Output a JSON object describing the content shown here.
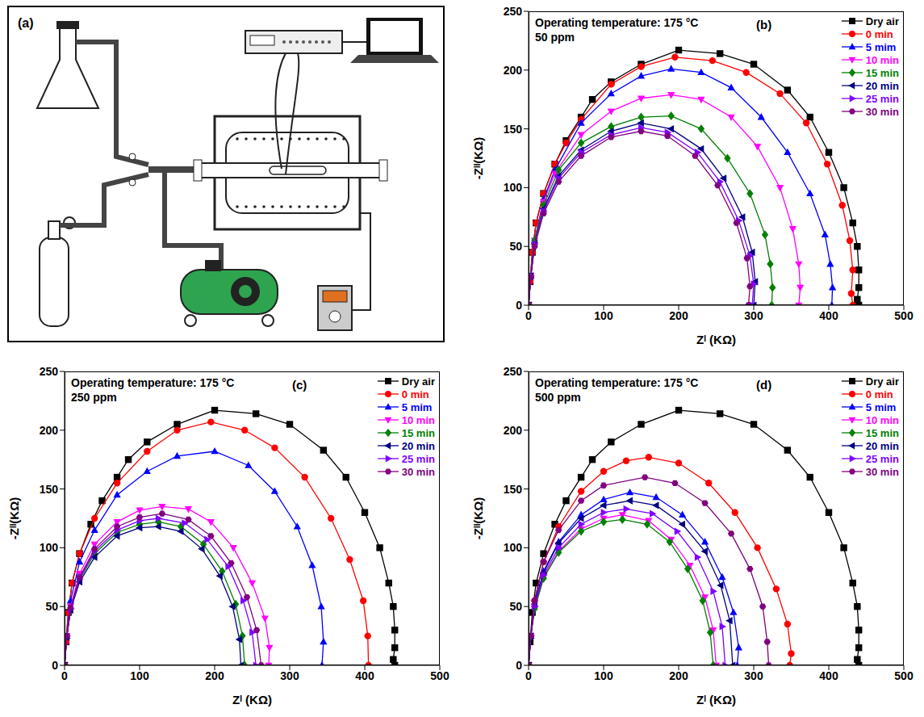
{
  "chart_data": [
    {
      "type": "diagram",
      "panel": "(a)"
    },
    {
      "type": "line",
      "panel": "(b)",
      "annotations": [
        "Operating temperature: 175 °C",
        "50 ppm"
      ],
      "xlabel": "Zᴵ (KΩ)",
      "ylabel": "-Zᴵᴵ(KΩ)",
      "xlim": [
        0,
        500
      ],
      "xticks": [
        0,
        100,
        200,
        300,
        400,
        500
      ],
      "ylim": [
        0,
        250
      ],
      "yticks": [
        0,
        50,
        100,
        150,
        200,
        250
      ],
      "grid": false,
      "legend": "top right",
      "series": [
        {
          "name": "Dry air",
          "color": "#000000",
          "marker": "square",
          "x": [
            0,
            2,
            5,
            10,
            20,
            35,
            50,
            70,
            85,
            110,
            150,
            200,
            255,
            300,
            345,
            375,
            400,
            420,
            432,
            438,
            440,
            440,
            438,
            440
          ],
          "values": [
            0,
            20,
            45,
            70,
            95,
            120,
            140,
            160,
            175,
            190,
            205,
            217,
            214,
            205,
            183,
            160,
            130,
            100,
            70,
            50,
            30,
            15,
            5,
            0
          ]
        },
        {
          "name": "0 min",
          "color": "#ff0000",
          "marker": "circle",
          "x": [
            0,
            2,
            5,
            10,
            20,
            35,
            50,
            70,
            110,
            150,
            195,
            245,
            290,
            335,
            370,
            398,
            418,
            428,
            432,
            430,
            432
          ],
          "values": [
            0,
            20,
            45,
            70,
            95,
            120,
            138,
            158,
            188,
            203,
            211,
            208,
            198,
            180,
            155,
            120,
            85,
            55,
            30,
            10,
            0
          ]
        },
        {
          "name": "5 mim",
          "color": "#0000ff",
          "marker": "triangle",
          "x": [
            0,
            3,
            8,
            20,
            35,
            70,
            110,
            150,
            190,
            230,
            270,
            310,
            345,
            375,
            395,
            402,
            405,
            404
          ],
          "values": [
            0,
            25,
            55,
            90,
            115,
            155,
            180,
            195,
            201,
            198,
            185,
            160,
            130,
            95,
            60,
            35,
            15,
            0
          ]
        },
        {
          "name": "10 min",
          "color": "#ff00ff",
          "marker": "triangle_down",
          "x": [
            0,
            3,
            8,
            20,
            35,
            70,
            110,
            150,
            190,
            230,
            270,
            305,
            335,
            352,
            360,
            362,
            360
          ],
          "values": [
            0,
            25,
            55,
            88,
            112,
            145,
            165,
            176,
            179,
            175,
            160,
            135,
            100,
            65,
            35,
            15,
            0
          ]
        },
        {
          "name": "15 min",
          "color": "#008000",
          "marker": "diamond",
          "x": [
            0,
            3,
            8,
            20,
            40,
            70,
            110,
            150,
            190,
            230,
            265,
            295,
            315,
            322,
            325,
            324
          ],
          "values": [
            0,
            25,
            55,
            85,
            115,
            138,
            152,
            160,
            161,
            150,
            125,
            95,
            60,
            35,
            15,
            0
          ]
        },
        {
          "name": "20 min",
          "color": "#000080",
          "marker": "triangle_left",
          "x": [
            0,
            3,
            8,
            20,
            40,
            70,
            110,
            150,
            190,
            230,
            260,
            285,
            298,
            302,
            300
          ],
          "values": [
            0,
            25,
            52,
            82,
            110,
            132,
            148,
            155,
            150,
            133,
            108,
            75,
            45,
            20,
            0
          ]
        },
        {
          "name": "25 min",
          "color": "#7f00ff",
          "marker": "triangle_right",
          "x": [
            0,
            3,
            8,
            20,
            40,
            70,
            110,
            150,
            185,
            225,
            255,
            280,
            295,
            300,
            298
          ],
          "values": [
            0,
            25,
            52,
            80,
            108,
            130,
            145,
            151,
            147,
            130,
            105,
            72,
            42,
            18,
            0
          ]
        },
        {
          "name": "30 min",
          "color": "#800080",
          "marker": "hexagon",
          "x": [
            0,
            3,
            8,
            20,
            40,
            70,
            110,
            150,
            185,
            222,
            252,
            277,
            291,
            295,
            293
          ],
          "values": [
            0,
            24,
            50,
            78,
            105,
            127,
            143,
            148,
            144,
            127,
            102,
            70,
            40,
            16,
            0
          ]
        }
      ]
    },
    {
      "type": "line",
      "panel": "(c)",
      "annotations": [
        "Operating temperature: 175 °C",
        "250 ppm"
      ],
      "xlabel": "Zᴵ (KΩ)",
      "ylabel": "-Zᴵᴵ(KΩ)",
      "xlim": [
        0,
        500
      ],
      "xticks": [
        0,
        100,
        200,
        300,
        400,
        500
      ],
      "ylim": [
        0,
        250
      ],
      "yticks": [
        0,
        50,
        100,
        150,
        200,
        250
      ],
      "grid": false,
      "legend": "top right",
      "series": [
        {
          "name": "Dry air",
          "color": "#000000",
          "marker": "square",
          "x": [
            0,
            2,
            5,
            10,
            20,
            35,
            50,
            70,
            85,
            110,
            150,
            200,
            255,
            300,
            345,
            375,
            400,
            420,
            432,
            438,
            440,
            440,
            438,
            440
          ],
          "values": [
            0,
            20,
            45,
            70,
            95,
            120,
            140,
            160,
            175,
            190,
            205,
            217,
            214,
            205,
            183,
            160,
            130,
            100,
            70,
            50,
            30,
            15,
            5,
            0
          ]
        },
        {
          "name": "0 min",
          "color": "#ff0000",
          "marker": "circle",
          "x": [
            0,
            2,
            5,
            10,
            20,
            40,
            70,
            110,
            150,
            195,
            240,
            280,
            320,
            355,
            380,
            398,
            404,
            405
          ],
          "values": [
            0,
            20,
            45,
            70,
            95,
            125,
            155,
            182,
            200,
            207,
            200,
            185,
            160,
            125,
            90,
            55,
            25,
            0
          ]
        },
        {
          "name": "5 mim",
          "color": "#0000ff",
          "marker": "triangle",
          "x": [
            0,
            3,
            8,
            20,
            40,
            70,
            110,
            150,
            200,
            245,
            280,
            310,
            330,
            342,
            345,
            343
          ],
          "values": [
            0,
            25,
            55,
            88,
            115,
            145,
            165,
            178,
            182,
            170,
            148,
            118,
            85,
            50,
            20,
            0
          ]
        },
        {
          "name": "10 min",
          "color": "#ff00ff",
          "marker": "triangle_down",
          "x": [
            0,
            3,
            8,
            20,
            40,
            70,
            100,
            130,
            165,
            195,
            225,
            250,
            267,
            273,
            272
          ],
          "values": [
            0,
            25,
            50,
            78,
            103,
            122,
            132,
            135,
            133,
            122,
            100,
            70,
            40,
            15,
            0
          ]
        },
        {
          "name": "15 min",
          "color": "#008000",
          "marker": "diamond",
          "x": [
            0,
            3,
            8,
            20,
            40,
            70,
            100,
            125,
            155,
            185,
            210,
            228,
            237,
            240
          ],
          "values": [
            0,
            25,
            48,
            73,
            95,
            113,
            120,
            122,
            118,
            103,
            80,
            52,
            25,
            0
          ]
        },
        {
          "name": "20 min",
          "color": "#000080",
          "marker": "triangle_left",
          "x": [
            0,
            3,
            8,
            20,
            40,
            70,
            100,
            125,
            155,
            183,
            207,
            224,
            233,
            235
          ],
          "values": [
            0,
            24,
            47,
            71,
            92,
            110,
            117,
            118,
            114,
            99,
            76,
            50,
            22,
            0
          ]
        },
        {
          "name": "25 min",
          "color": "#7f00ff",
          "marker": "triangle_right",
          "x": [
            0,
            3,
            8,
            20,
            40,
            70,
            100,
            125,
            160,
            190,
            218,
            238,
            250,
            255
          ],
          "values": [
            0,
            25,
            48,
            74,
            97,
            115,
            123,
            125,
            121,
            107,
            84,
            55,
            28,
            0
          ]
        },
        {
          "name": "30 min",
          "color": "#800080",
          "marker": "hexagon",
          "x": [
            0,
            3,
            8,
            20,
            40,
            70,
            100,
            130,
            165,
            195,
            222,
            243,
            256,
            262
          ],
          "values": [
            0,
            25,
            49,
            75,
            99,
            118,
            126,
            129,
            124,
            110,
            87,
            58,
            30,
            0
          ]
        }
      ]
    },
    {
      "type": "line",
      "panel": "(d)",
      "annotations": [
        "Operating temperature: 175 °C",
        "500 ppm"
      ],
      "xlabel": "Zᴵ (KΩ)",
      "ylabel": "-Zᴵᴵ(KΩ)",
      "xlim": [
        0,
        500
      ],
      "xticks": [
        0,
        100,
        200,
        300,
        400,
        500
      ],
      "ylim": [
        0,
        250
      ],
      "yticks": [
        0,
        50,
        100,
        150,
        200,
        250
      ],
      "grid": false,
      "legend": "top right",
      "series": [
        {
          "name": "Dry air",
          "color": "#000000",
          "marker": "square",
          "x": [
            0,
            2,
            5,
            10,
            20,
            35,
            50,
            70,
            85,
            110,
            150,
            200,
            255,
            300,
            345,
            375,
            400,
            420,
            432,
            438,
            440,
            440,
            438,
            440
          ],
          "values": [
            0,
            20,
            45,
            70,
            95,
            120,
            140,
            160,
            175,
            190,
            205,
            217,
            214,
            205,
            183,
            160,
            130,
            100,
            70,
            50,
            30,
            15,
            5,
            0
          ]
        },
        {
          "name": "0 min",
          "color": "#ff0000",
          "marker": "circle",
          "x": [
            0,
            3,
            8,
            20,
            40,
            70,
            100,
            130,
            160,
            200,
            240,
            275,
            305,
            330,
            345,
            350,
            348
          ],
          "values": [
            0,
            25,
            55,
            88,
            118,
            148,
            165,
            174,
            177,
            172,
            155,
            130,
            100,
            65,
            35,
            10,
            0
          ]
        },
        {
          "name": "5 mim",
          "color": "#0000ff",
          "marker": "triangle",
          "x": [
            0,
            3,
            8,
            20,
            40,
            70,
            100,
            135,
            170,
            205,
            235,
            258,
            273,
            280,
            278
          ],
          "values": [
            0,
            25,
            52,
            80,
            105,
            128,
            141,
            147,
            143,
            128,
            105,
            75,
            45,
            15,
            0
          ]
        },
        {
          "name": "10 min",
          "color": "#ff00ff",
          "marker": "triangle_down",
          "x": [
            0,
            3,
            8,
            20,
            40,
            70,
            100,
            125,
            160,
            190,
            215,
            235,
            246,
            250
          ],
          "values": [
            0,
            25,
            48,
            75,
            97,
            116,
            125,
            128,
            123,
            107,
            85,
            58,
            30,
            0
          ]
        },
        {
          "name": "15 min",
          "color": "#008000",
          "marker": "diamond",
          "x": [
            0,
            3,
            8,
            20,
            40,
            70,
            100,
            125,
            158,
            188,
            212,
            232,
            242,
            246
          ],
          "values": [
            0,
            25,
            48,
            74,
            96,
            114,
            122,
            124,
            120,
            105,
            82,
            55,
            28,
            0
          ]
        },
        {
          "name": "20 min",
          "color": "#000080",
          "marker": "triangle_left",
          "x": [
            0,
            3,
            8,
            20,
            40,
            70,
            100,
            135,
            170,
            205,
            235,
            256,
            268,
            272
          ],
          "values": [
            0,
            25,
            52,
            79,
            104,
            125,
            136,
            140,
            136,
            120,
            97,
            68,
            38,
            0
          ]
        },
        {
          "name": "25 min",
          "color": "#7f00ff",
          "marker": "triangle_right",
          "x": [
            0,
            3,
            8,
            20,
            40,
            70,
            100,
            130,
            165,
            198,
            225,
            246,
            258,
            262
          ],
          "values": [
            0,
            25,
            50,
            77,
            100,
            120,
            130,
            133,
            129,
            114,
            92,
            63,
            33,
            0
          ]
        },
        {
          "name": "30 min",
          "color": "#800080",
          "marker": "hexagon",
          "x": [
            0,
            3,
            8,
            20,
            40,
            70,
            100,
            155,
            195,
            235,
            270,
            295,
            312,
            318,
            320
          ],
          "values": [
            0,
            25,
            55,
            88,
            115,
            140,
            153,
            160,
            155,
            138,
            112,
            82,
            50,
            20,
            0
          ]
        }
      ]
    }
  ]
}
